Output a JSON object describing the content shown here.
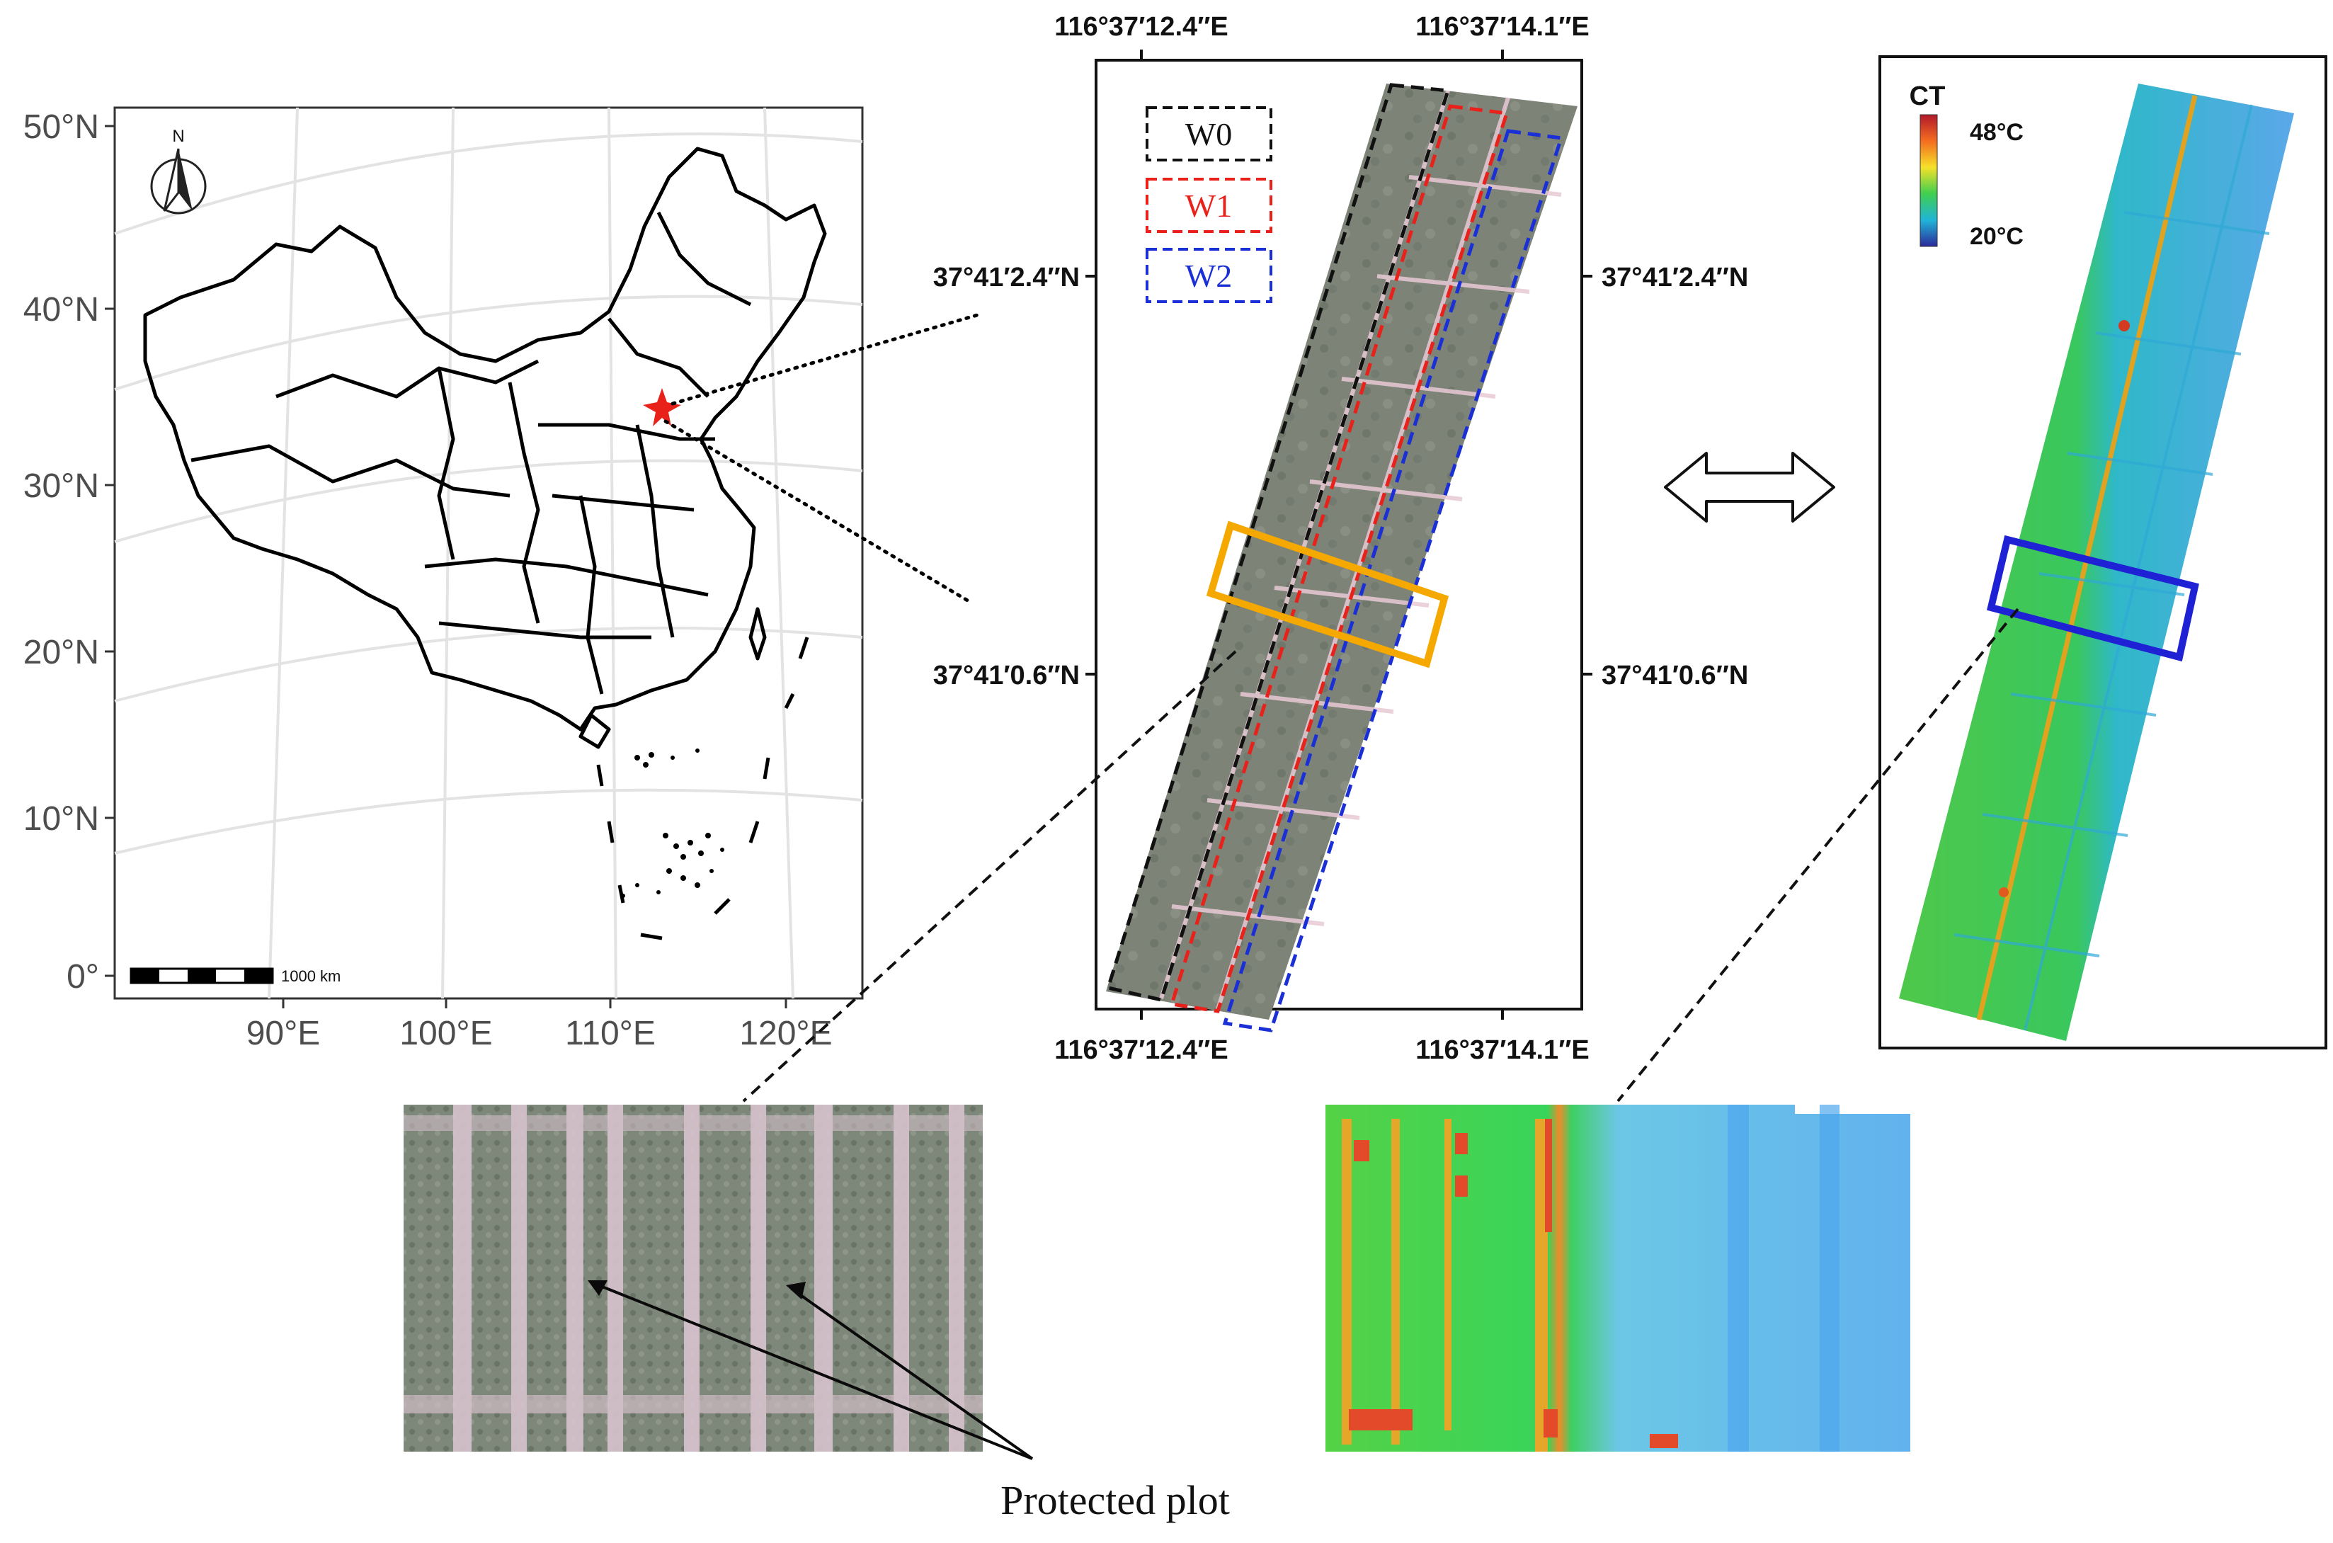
{
  "china_map": {
    "lat_ticks": [
      "50°N",
      "40°N",
      "30°N",
      "20°N",
      "10°N",
      "0°"
    ],
    "lon_ticks": [
      "90°E",
      "100°E",
      "110°E",
      "120°E"
    ],
    "north_label": "N",
    "scale_label": "1000 km"
  },
  "field_rgb": {
    "top_lon_labels": [
      "116°37′12.4″E",
      "116°37′14.1″E"
    ],
    "bottom_lon_labels": [
      "116°37′12.4″E",
      "116°37′14.1″E"
    ],
    "left_lat_labels": [
      "37°41′2.4″N",
      "37°41′0.6″N"
    ],
    "right_lat_labels": [
      "37°41′2.4″N",
      "37°41′0.6″N"
    ],
    "legend": [
      {
        "label": "W0",
        "color": "#111111"
      },
      {
        "label": "W1",
        "color": "#e8211b"
      },
      {
        "label": "W2",
        "color": "#1a2fd6"
      }
    ]
  },
  "thermal": {
    "title": "CT",
    "max_label": "48°C",
    "min_label": "20°C"
  },
  "caption": "Protected plot",
  "colors": {
    "highlight_rgb": "#f5a800",
    "highlight_thermal": "#1f22d4"
  }
}
